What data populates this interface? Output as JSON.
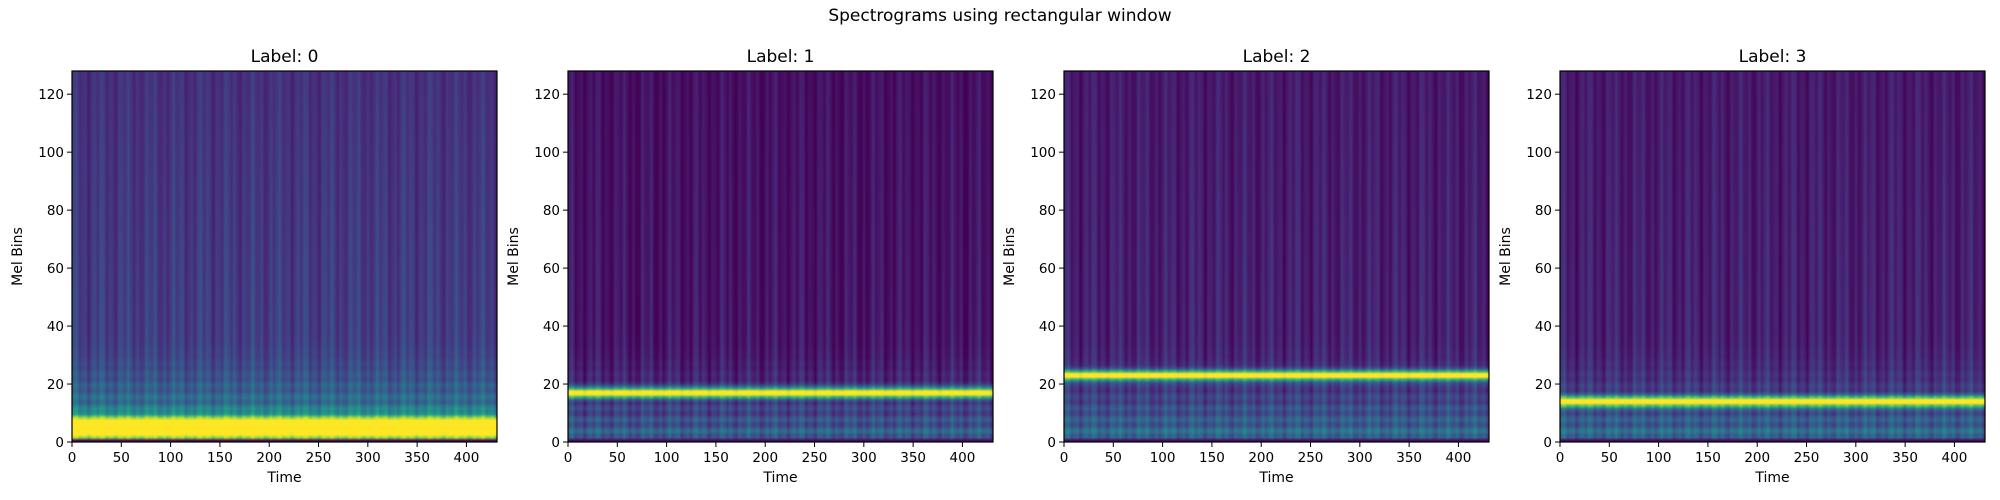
{
  "figure": {
    "suptitle": "Spectrograms using rectangular window"
  },
  "colors": {
    "colormap": "viridis",
    "axis": "#000000",
    "background": "#ffffff"
  },
  "chart_data": [
    {
      "type": "heatmap",
      "title": "Label: 0",
      "xlabel": "Time",
      "ylabel": "Mel Bins",
      "xlim": [
        0,
        431
      ],
      "ylim": [
        0,
        128
      ],
      "xticks": [
        0,
        50,
        100,
        150,
        200,
        250,
        300,
        350,
        400
      ],
      "yticks": [
        0,
        20,
        40,
        60,
        80,
        100,
        120
      ],
      "colormap": "viridis",
      "dominant_band_mel_bin": 5,
      "band_width_bins": 4,
      "low_freq_spread": "strong",
      "background_level": 0.2
    },
    {
      "type": "heatmap",
      "title": "Label: 1",
      "xlabel": "Time",
      "ylabel": "Mel Bins",
      "xlim": [
        0,
        431
      ],
      "ylim": [
        0,
        128
      ],
      "xticks": [
        0,
        50,
        100,
        150,
        200,
        250,
        300,
        350,
        400
      ],
      "yticks": [
        0,
        20,
        40,
        60,
        80,
        100,
        120
      ],
      "colormap": "viridis",
      "dominant_band_mel_bin": 17,
      "band_width_bins": 2,
      "low_freq_spread": "moderate",
      "background_level": 0.06
    },
    {
      "type": "heatmap",
      "title": "Label: 2",
      "xlabel": "Time",
      "ylabel": "Mel Bins",
      "xlim": [
        0,
        431
      ],
      "ylim": [
        0,
        128
      ],
      "xticks": [
        0,
        50,
        100,
        150,
        200,
        250,
        300,
        350,
        400
      ],
      "yticks": [
        0,
        20,
        40,
        60,
        80,
        100,
        120
      ],
      "colormap": "viridis",
      "dominant_band_mel_bin": 23,
      "band_width_bins": 2,
      "low_freq_spread": "moderate",
      "background_level": 0.1
    },
    {
      "type": "heatmap",
      "title": "Label: 3",
      "xlabel": "Time",
      "ylabel": "Mel Bins",
      "xlim": [
        0,
        431
      ],
      "ylim": [
        0,
        128
      ],
      "xticks": [
        0,
        50,
        100,
        150,
        200,
        250,
        300,
        350,
        400
      ],
      "yticks": [
        0,
        20,
        40,
        60,
        80,
        100,
        120
      ],
      "colormap": "viridis",
      "dominant_band_mel_bin": 14,
      "band_width_bins": 2,
      "low_freq_spread": "moderate",
      "background_level": 0.1
    }
  ]
}
